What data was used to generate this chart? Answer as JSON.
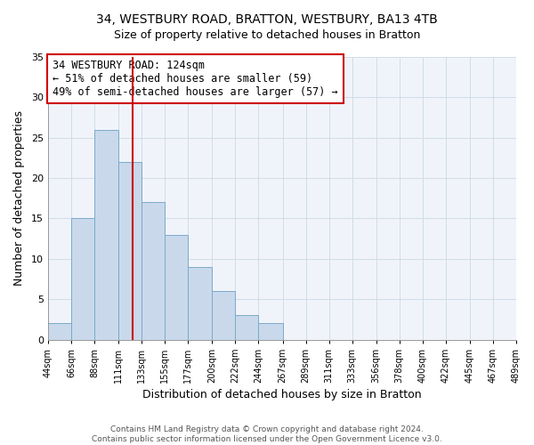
{
  "title_line1": "34, WESTBURY ROAD, BRATTON, WESTBURY, BA13 4TB",
  "title_line2": "Size of property relative to detached houses in Bratton",
  "xlabel": "Distribution of detached houses by size in Bratton",
  "ylabel": "Number of detached properties",
  "bin_labels": [
    "44sqm",
    "66sqm",
    "88sqm",
    "111sqm",
    "133sqm",
    "155sqm",
    "177sqm",
    "200sqm",
    "222sqm",
    "244sqm",
    "267sqm",
    "289sqm",
    "311sqm",
    "333sqm",
    "356sqm",
    "378sqm",
    "400sqm",
    "422sqm",
    "445sqm",
    "467sqm",
    "489sqm"
  ],
  "bin_edges": [
    44,
    66,
    88,
    111,
    133,
    155,
    177,
    200,
    222,
    244,
    267,
    289,
    311,
    333,
    356,
    378,
    400,
    422,
    445,
    467,
    489
  ],
  "bar_heights": [
    2,
    15,
    26,
    22,
    17,
    13,
    9,
    6,
    3,
    2,
    0,
    0,
    0,
    0,
    0,
    0,
    0,
    0,
    0,
    0
  ],
  "bar_color": "#c9d9eb",
  "bar_edge_color": "#7aaac8",
  "property_line_x": 124,
  "property_line_color": "#cc0000",
  "annotation_text": "34 WESTBURY ROAD: 124sqm\n← 51% of detached houses are smaller (59)\n49% of semi-detached houses are larger (57) →",
  "annotation_box_facecolor": "#ffffff",
  "annotation_box_edgecolor": "#cc0000",
  "ylim": [
    0,
    35
  ],
  "yticks": [
    0,
    5,
    10,
    15,
    20,
    25,
    30,
    35
  ],
  "grid_color": "#d0dce8",
  "footer_text": "Contains HM Land Registry data © Crown copyright and database right 2024.\nContains public sector information licensed under the Open Government Licence v3.0.",
  "bg_color": "#ffffff",
  "plot_bg_color": "#f0f4fa"
}
